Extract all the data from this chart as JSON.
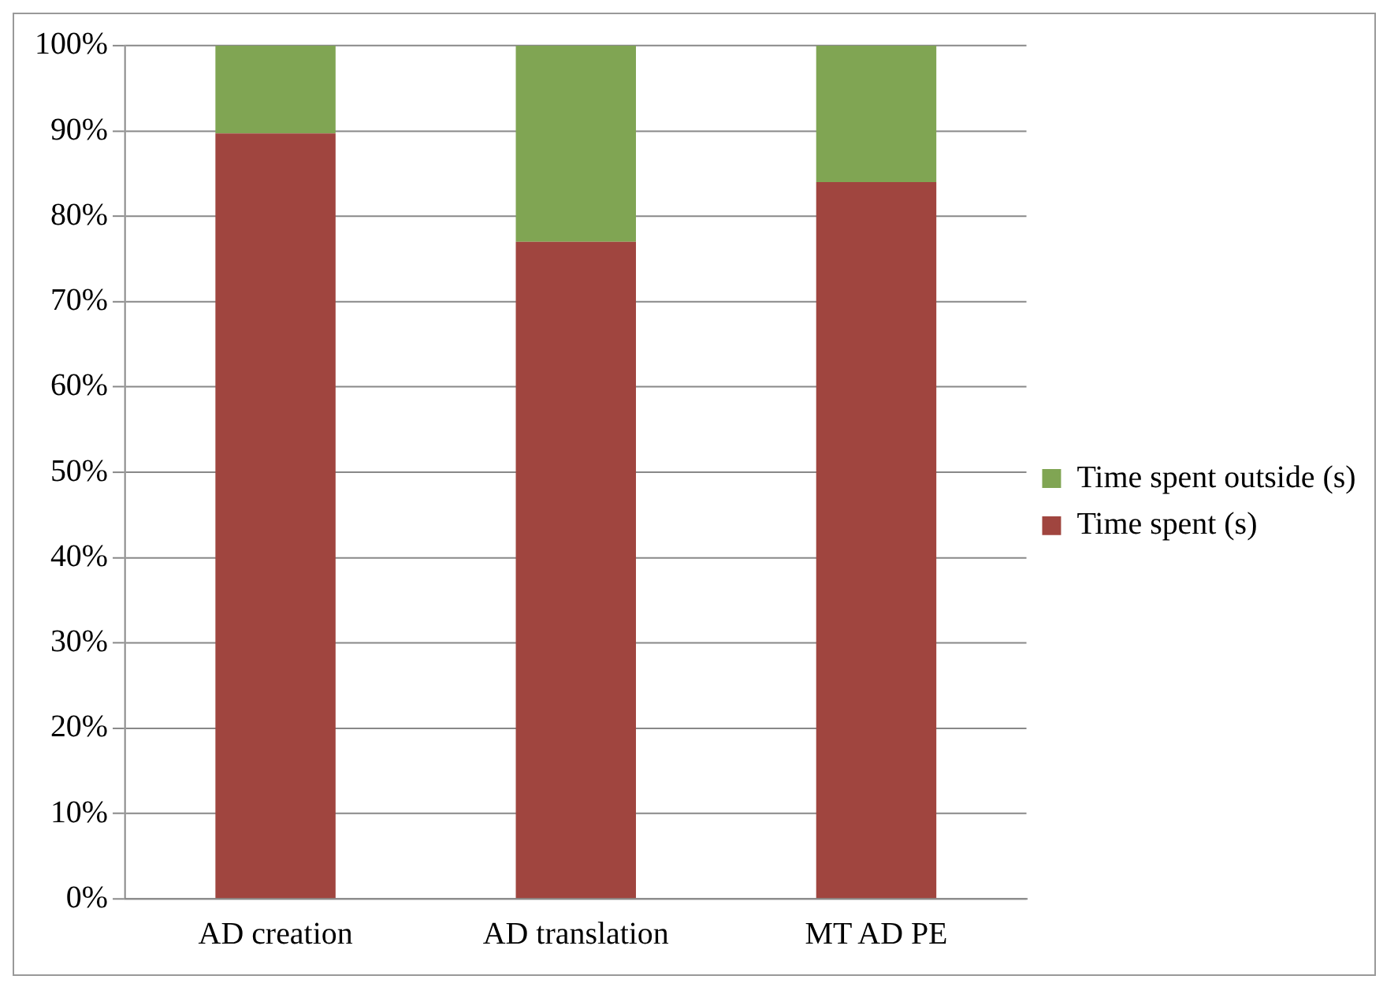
{
  "chart_data": {
    "type": "bar",
    "stacked": true,
    "categories": [
      "AD creation",
      "AD translation",
      "MT AD PE"
    ],
    "series": [
      {
        "name": "Time spent (s)",
        "color": "#a0453f",
        "values": [
          89.7,
          77,
          84
        ]
      },
      {
        "name": "Time spent outside (s)",
        "color": "#80a553",
        "values": [
          10.3,
          23,
          16
        ]
      }
    ],
    "ylim": [
      0,
      100
    ],
    "yticks": [
      {
        "value": 0,
        "label": "0%"
      },
      {
        "value": 10,
        "label": "10%"
      },
      {
        "value": 20,
        "label": "20%"
      },
      {
        "value": 30,
        "label": "30%"
      },
      {
        "value": 40,
        "label": "40%"
      },
      {
        "value": 50,
        "label": "50%"
      },
      {
        "value": 60,
        "label": "60%"
      },
      {
        "value": 70,
        "label": "70%"
      },
      {
        "value": 80,
        "label": "80%"
      },
      {
        "value": 90,
        "label": "90%"
      },
      {
        "value": 100,
        "label": "100%"
      }
    ],
    "grid": "y",
    "legend": "right"
  }
}
